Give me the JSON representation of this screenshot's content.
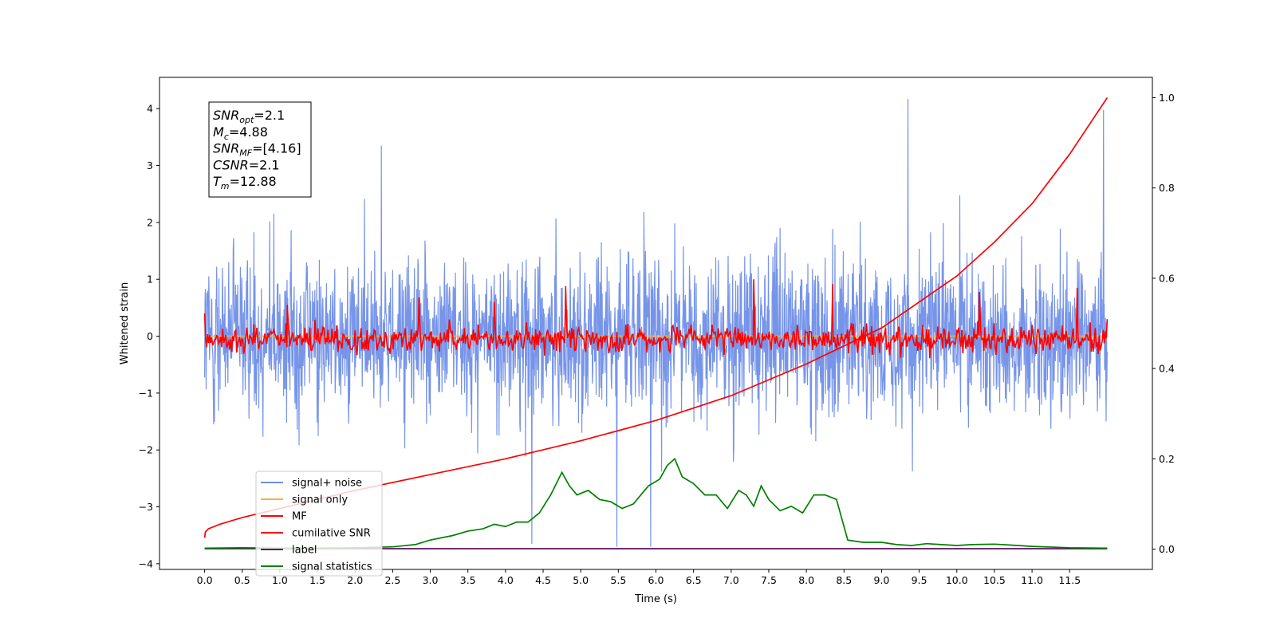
{
  "chart_data": {
    "type": "line",
    "xlabel": "Time (s)",
    "ylabel": "Whitened strain",
    "xlim": [
      -0.6,
      12.6
    ],
    "ylim": [
      -4.1,
      4.55
    ],
    "y2lim": [
      -0.045,
      1.045
    ],
    "x_ticks": [
      0.0,
      0.5,
      1.0,
      1.5,
      2.0,
      2.5,
      3.0,
      3.5,
      4.0,
      4.5,
      5.0,
      5.5,
      6.0,
      6.5,
      7.0,
      7.5,
      8.0,
      8.5,
      9.0,
      9.5,
      10.0,
      10.5,
      11.0,
      11.5
    ],
    "x_tick_labels": [
      "0.0",
      "0.5",
      "1.0",
      "1.5",
      "2.0",
      "2.5",
      "3.0",
      "3.5",
      "4.0",
      "4.5",
      "5.0",
      "5.5",
      "6.0",
      "6.5",
      "7.0",
      "7.5",
      "8.0",
      "8.5",
      "9.0",
      "9.5",
      "10.0",
      "10.5",
      "11.0",
      "11.5"
    ],
    "y_ticks": [
      -4,
      -3,
      -2,
      -1,
      0,
      1,
      2,
      3,
      4
    ],
    "y_tick_labels": [
      "−4",
      "−3",
      "−2",
      "−1",
      "0",
      "1",
      "2",
      "3",
      "4"
    ],
    "y2_ticks": [
      0.0,
      0.2,
      0.4,
      0.6,
      0.8,
      1.0
    ],
    "y2_tick_labels": [
      "0.0",
      "0.2",
      "0.4",
      "0.6",
      "0.8",
      "1.0"
    ],
    "legend_position": "lower-left",
    "grid": false,
    "annotation": {
      "lines": [
        {
          "main": "SNR",
          "sub": "opt",
          "rest": "=2.1"
        },
        {
          "main": "M",
          "sub": "c",
          "rest": "=4.88"
        },
        {
          "main": "SNR",
          "sub": "MF",
          "rest": "=[4.16]"
        },
        {
          "main": "CSNR",
          "sub": "",
          "rest": "=2.1"
        },
        {
          "main": "T",
          "sub": "m",
          "rest": "=12.88"
        }
      ]
    },
    "series": [
      {
        "name": "signal+ noise",
        "axis": "left",
        "color": "#6f8ee8",
        "style": "dense noise band",
        "x_range": [
          0.0,
          12.0
        ],
        "envelope_upper": 2.0,
        "envelope_lower": -2.0,
        "peak_max": 4.17,
        "peak_min": -3.7
      },
      {
        "name": "signal only",
        "axis": "left",
        "color": "#f5b041",
        "x": [
          0.0,
          12.0
        ],
        "y": [
          0.0,
          0.0
        ]
      },
      {
        "name": "MF",
        "axis": "left",
        "color": "#ff0000",
        "style": "fluctuating trace",
        "x_range": [
          0.0,
          12.0
        ],
        "center": -0.05,
        "amplitude": 0.3,
        "peaks": [
          [
            0.0,
            0.4
          ],
          [
            1.1,
            0.55
          ],
          [
            2.85,
            0.68
          ],
          [
            3.85,
            0.6
          ],
          [
            4.8,
            0.88
          ],
          [
            7.3,
            1.0
          ],
          [
            8.35,
            0.92
          ],
          [
            10.3,
            0.78
          ],
          [
            11.6,
            0.85
          ],
          [
            12.0,
            0.3
          ]
        ]
      },
      {
        "name": "cumilative SNR",
        "axis": "right",
        "color": "#ff0000",
        "x": [
          0.0,
          0.01,
          0.05,
          0.2,
          0.5,
          1.0,
          2.0,
          3.0,
          4.0,
          5.0,
          6.0,
          7.0,
          8.0,
          9.0,
          10.0,
          10.5,
          11.0,
          11.5,
          12.0
        ],
        "y": [
          0.025,
          0.038,
          0.045,
          0.055,
          0.07,
          0.09,
          0.13,
          0.165,
          0.2,
          0.24,
          0.285,
          0.34,
          0.41,
          0.49,
          0.605,
          0.68,
          0.765,
          0.875,
          1.0
        ]
      },
      {
        "name": "label",
        "axis": "right",
        "color": "#5b0f5b",
        "x": [
          0.0,
          12.0
        ],
        "y": [
          0.001,
          0.001
        ]
      },
      {
        "name": "signal statistics",
        "axis": "right",
        "color": "#008000",
        "x": [
          0.0,
          0.5,
          1.0,
          1.5,
          2.0,
          2.5,
          2.8,
          3.0,
          3.3,
          3.5,
          3.7,
          3.85,
          4.0,
          4.15,
          4.3,
          4.45,
          4.6,
          4.75,
          4.85,
          4.95,
          5.1,
          5.25,
          5.4,
          5.55,
          5.7,
          5.8,
          5.9,
          6.05,
          6.15,
          6.25,
          6.35,
          6.5,
          6.65,
          6.8,
          6.95,
          7.1,
          7.2,
          7.3,
          7.4,
          7.5,
          7.65,
          7.8,
          7.95,
          8.1,
          8.25,
          8.4,
          8.55,
          8.75,
          9.0,
          9.2,
          9.4,
          9.6,
          9.8,
          10.0,
          10.2,
          10.5,
          10.7,
          11.0,
          11.5,
          12.0
        ],
        "y": [
          0.002,
          0.003,
          0.002,
          0.002,
          0.003,
          0.005,
          0.01,
          0.02,
          0.03,
          0.04,
          0.045,
          0.055,
          0.05,
          0.06,
          0.06,
          0.08,
          0.12,
          0.17,
          0.14,
          0.12,
          0.13,
          0.11,
          0.105,
          0.09,
          0.1,
          0.12,
          0.14,
          0.155,
          0.185,
          0.2,
          0.16,
          0.145,
          0.12,
          0.12,
          0.09,
          0.13,
          0.12,
          0.095,
          0.14,
          0.11,
          0.085,
          0.095,
          0.08,
          0.12,
          0.12,
          0.11,
          0.02,
          0.015,
          0.015,
          0.01,
          0.008,
          0.012,
          0.01,
          0.008,
          0.01,
          0.011,
          0.009,
          0.006,
          0.003,
          0.002
        ]
      }
    ]
  }
}
